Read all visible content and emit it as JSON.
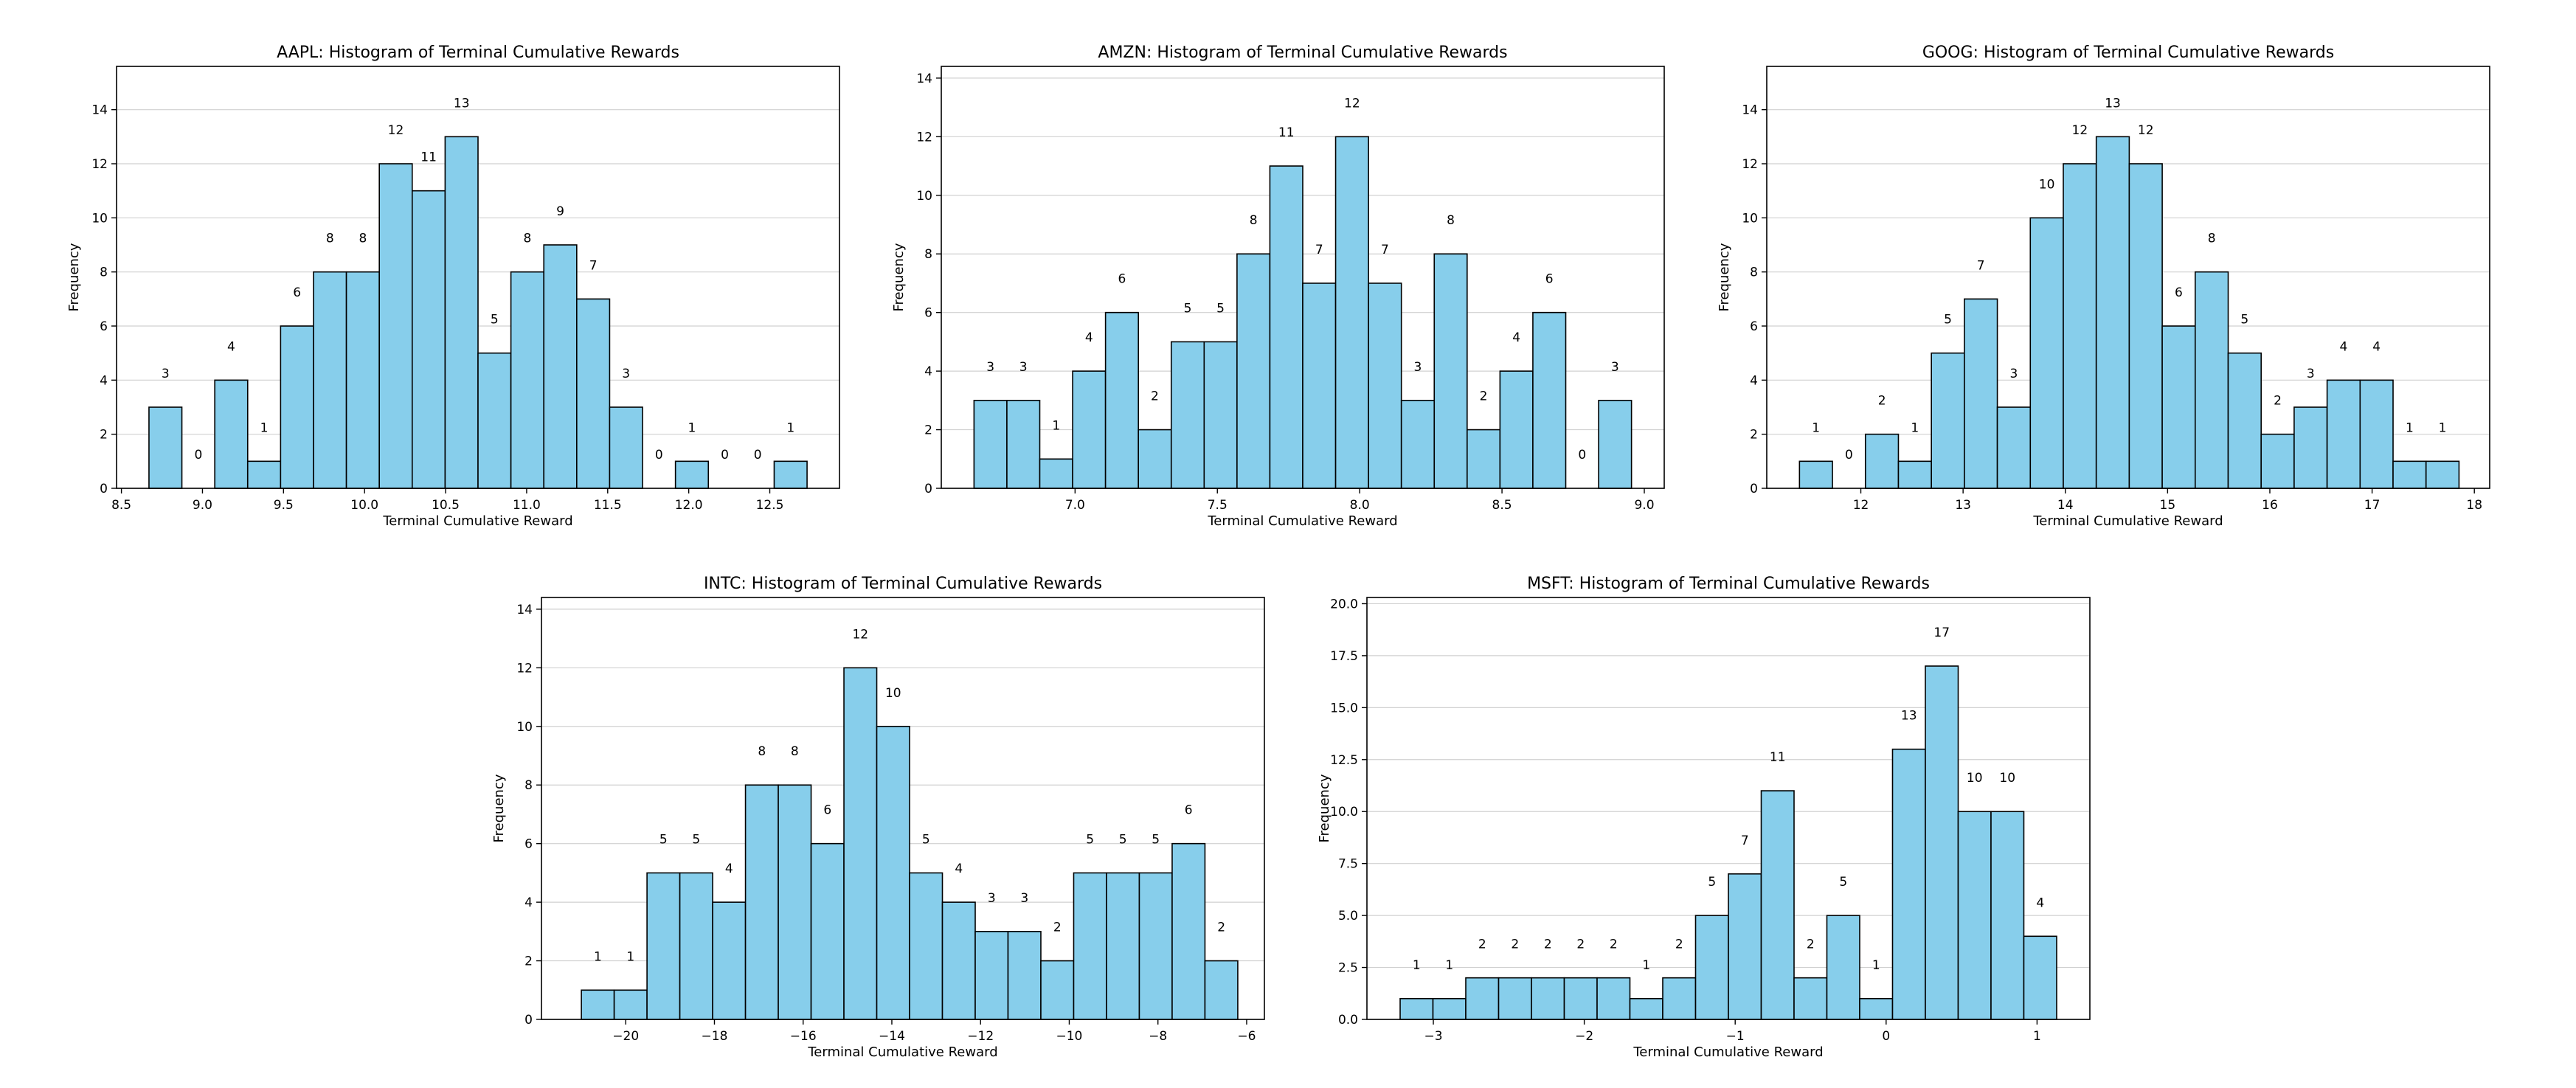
{
  "colors": {
    "bar_fill": "#87ceeb",
    "bar_edge": "#000000",
    "grid": "#d0d0d0",
    "axis": "#000000"
  },
  "chart_data": [
    {
      "id": "aapl",
      "type": "bar",
      "title": "AAPL: Histogram of Terminal Cumulative Rewards",
      "xlabel": "Terminal Cumulative Reward",
      "ylabel": "Frequency",
      "xlim": [
        8.47,
        12.93
      ],
      "ylim": [
        0,
        15.6
      ],
      "xticks": [
        8.5,
        9.0,
        9.5,
        10.0,
        10.5,
        11.0,
        11.5,
        12.0,
        12.5
      ],
      "xtick_labels": [
        "8.5",
        "9.0",
        "9.5",
        "10.0",
        "10.5",
        "11.0",
        "11.5",
        "12.0",
        "12.5"
      ],
      "yticks": [
        0,
        2,
        4,
        6,
        8,
        10,
        12,
        14
      ],
      "ytick_labels": [
        "0",
        "2",
        "4",
        "6",
        "8",
        "10",
        "12",
        "14"
      ],
      "grid": true,
      "bin_start": 8.67,
      "bin_width": 0.203,
      "values": [
        3,
        0,
        4,
        1,
        6,
        8,
        8,
        12,
        11,
        13,
        5,
        8,
        9,
        7,
        3,
        0,
        1,
        0,
        0,
        1
      ],
      "value_labels": [
        "3",
        "0",
        "4",
        "1",
        "6",
        "8",
        "8",
        "12",
        "11",
        "13",
        "5",
        "8",
        "9",
        "7",
        "3",
        "0",
        "1",
        "0",
        "0",
        "1"
      ]
    },
    {
      "id": "amzn",
      "type": "bar",
      "title": "AMZN: Histogram of Terminal Cumulative Rewards",
      "xlabel": "Terminal Cumulative Reward",
      "ylabel": "Frequency",
      "xlim": [
        6.53,
        9.07
      ],
      "ylim": [
        0,
        14.4
      ],
      "xticks": [
        7.0,
        7.5,
        8.0,
        8.5,
        9.0
      ],
      "xtick_labels": [
        "7.0",
        "7.5",
        "8.0",
        "8.5",
        "9.0"
      ],
      "yticks": [
        0,
        2,
        4,
        6,
        8,
        10,
        12,
        14
      ],
      "ytick_labels": [
        "0",
        "2",
        "4",
        "6",
        "8",
        "10",
        "12",
        "14"
      ],
      "grid": true,
      "bin_start": 6.645,
      "bin_width": 0.1155,
      "values": [
        3,
        3,
        1,
        4,
        6,
        2,
        5,
        5,
        8,
        11,
        7,
        12,
        7,
        3,
        8,
        2,
        4,
        6,
        0,
        3
      ],
      "value_labels": [
        "3",
        "3",
        "1",
        "4",
        "6",
        "2",
        "5",
        "5",
        "8",
        "11",
        "7",
        "12",
        "7",
        "3",
        "8",
        "2",
        "4",
        "6",
        "0",
        "3"
      ]
    },
    {
      "id": "goog",
      "type": "bar",
      "title": "GOOG: Histogram of Terminal Cumulative Rewards",
      "xlabel": "Terminal Cumulative Reward",
      "ylabel": "Frequency",
      "xlim": [
        11.08,
        18.15
      ],
      "ylim": [
        0,
        15.6
      ],
      "xticks": [
        12,
        13,
        14,
        15,
        16,
        17,
        18
      ],
      "xtick_labels": [
        "12",
        "13",
        "14",
        "15",
        "16",
        "17",
        "18"
      ],
      "yticks": [
        0,
        2,
        4,
        6,
        8,
        10,
        12,
        14
      ],
      "ytick_labels": [
        "0",
        "2",
        "4",
        "6",
        "8",
        "10",
        "12",
        "14"
      ],
      "grid": true,
      "bin_start": 11.4,
      "bin_width": 0.3225,
      "values": [
        1,
        0,
        2,
        1,
        5,
        7,
        3,
        10,
        12,
        13,
        12,
        6,
        8,
        5,
        2,
        3,
        4,
        4,
        1,
        1
      ],
      "value_labels": [
        "1",
        "0",
        "2",
        "1",
        "5",
        "7",
        "3",
        "10",
        "12",
        "13",
        "12",
        "6",
        "8",
        "5",
        "2",
        "3",
        "4",
        "4",
        "1",
        "1"
      ]
    },
    {
      "id": "intc",
      "type": "bar",
      "title": "INTC: Histogram of Terminal Cumulative Rewards",
      "xlabel": "Terminal Cumulative Reward",
      "ylabel": "Frequency",
      "xlim": [
        -21.9,
        -5.6
      ],
      "ylim": [
        0,
        14.4
      ],
      "xticks": [
        -20,
        -18,
        -16,
        -14,
        -12,
        -10,
        -8,
        -6
      ],
      "xtick_labels": [
        "−20",
        "−18",
        "−16",
        "−14",
        "−12",
        "−10",
        "−8",
        "−6"
      ],
      "yticks": [
        0,
        2,
        4,
        6,
        8,
        10,
        12,
        14
      ],
      "ytick_labels": [
        "0",
        "2",
        "4",
        "6",
        "8",
        "10",
        "12",
        "14"
      ],
      "grid": true,
      "bin_start": -21.0,
      "bin_width": 0.74,
      "values": [
        1,
        1,
        5,
        5,
        4,
        8,
        8,
        6,
        12,
        10,
        5,
        4,
        3,
        3,
        2,
        5,
        5,
        5,
        6,
        2
      ],
      "value_labels": [
        "1",
        "1",
        "5",
        "5",
        "4",
        "8",
        "8",
        "6",
        "12",
        "10",
        "5",
        "4",
        "3",
        "3",
        "2",
        "5",
        "5",
        "5",
        "6",
        "2"
      ]
    },
    {
      "id": "msft",
      "type": "bar",
      "title": "MSFT: Histogram of Terminal Cumulative Rewards",
      "xlabel": "Terminal Cumulative Reward",
      "ylabel": "Frequency",
      "xlim": [
        -3.44,
        1.35
      ],
      "ylim": [
        0,
        20.3
      ],
      "xticks": [
        -3,
        -2,
        -1,
        0,
        1
      ],
      "xtick_labels": [
        "−3",
        "−2",
        "−1",
        "0",
        "1"
      ],
      "yticks": [
        0,
        2.5,
        5.0,
        7.5,
        10.0,
        12.5,
        15.0,
        17.5,
        20.0
      ],
      "ytick_labels": [
        "0.0",
        "2.5",
        "5.0",
        "7.5",
        "10.0",
        "12.5",
        "15.0",
        "17.5",
        "20.0"
      ],
      "grid": true,
      "bin_start": -3.22,
      "bin_width": 0.2175,
      "values": [
        1,
        1,
        2,
        2,
        2,
        2,
        2,
        1,
        2,
        5,
        7,
        11,
        2,
        5,
        1,
        13,
        17,
        10,
        10,
        4
      ],
      "value_labels": [
        "1",
        "1",
        "2",
        "2",
        "2",
        "2",
        "2",
        "1",
        "2",
        "5",
        "7",
        "11",
        "2",
        "5",
        "1",
        "13",
        "17",
        "10",
        "10",
        "4"
      ]
    }
  ]
}
